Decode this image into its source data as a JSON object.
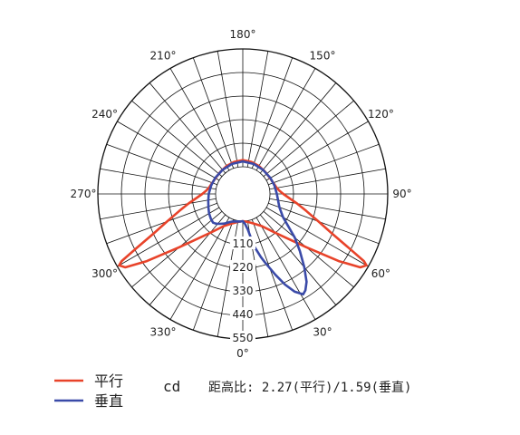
{
  "chart_data": {
    "type": "polar",
    "angle_labels": [
      {
        "deg": 0,
        "text": "0°"
      },
      {
        "deg": 30,
        "text": "30°"
      },
      {
        "deg": 60,
        "text": "60°"
      },
      {
        "deg": 90,
        "text": "90°"
      },
      {
        "deg": 120,
        "text": "120°"
      },
      {
        "deg": 150,
        "text": "150°"
      },
      {
        "deg": 180,
        "text": "180°"
      },
      {
        "deg": 210,
        "text": "210°"
      },
      {
        "deg": 240,
        "text": "240°"
      },
      {
        "deg": 270,
        "text": "270°"
      },
      {
        "deg": 300,
        "text": "300°"
      },
      {
        "deg": 330,
        "text": "330°"
      }
    ],
    "radial_ticks": [
      "110",
      "220",
      "330",
      "440",
      "550"
    ],
    "radial_max": 550,
    "radial_step": 110,
    "angular_grid_step": 10,
    "series": [
      {
        "name": "平行",
        "color": "#e8432a",
        "points": [
          [
            0,
            0
          ],
          [
            10,
            6
          ],
          [
            20,
            20
          ],
          [
            30,
            45
          ],
          [
            40,
            110
          ],
          [
            50,
            260
          ],
          [
            55,
            420
          ],
          [
            58,
            520
          ],
          [
            60,
            540
          ],
          [
            61,
            520
          ],
          [
            63,
            430
          ],
          [
            66,
            330
          ],
          [
            70,
            250
          ],
          [
            75,
            180
          ],
          [
            80,
            130
          ],
          [
            85,
            90
          ],
          [
            90,
            62
          ],
          [
            95,
            45
          ],
          [
            100,
            34
          ],
          [
            110,
            25
          ],
          [
            120,
            20
          ],
          [
            135,
            20
          ],
          [
            150,
            24
          ],
          [
            165,
            28
          ],
          [
            180,
            31
          ],
          [
            195,
            28
          ],
          [
            210,
            24
          ],
          [
            225,
            20
          ],
          [
            240,
            20
          ],
          [
            250,
            25
          ],
          [
            260,
            34
          ],
          [
            265,
            45
          ],
          [
            270,
            62
          ],
          [
            275,
            90
          ],
          [
            280,
            130
          ],
          [
            285,
            180
          ],
          [
            290,
            250
          ],
          [
            294,
            330
          ],
          [
            297,
            430
          ],
          [
            299,
            520
          ],
          [
            300,
            540
          ],
          [
            302,
            520
          ],
          [
            305,
            420
          ],
          [
            310,
            260
          ],
          [
            320,
            110
          ],
          [
            330,
            45
          ],
          [
            340,
            20
          ],
          [
            350,
            6
          ],
          [
            360,
            0
          ]
        ]
      },
      {
        "name": "垂直",
        "color": "#3a4aa8",
        "points": [
          [
            0,
            0
          ],
          [
            4,
            12
          ],
          [
            8,
            40
          ],
          [
            12,
            120
          ],
          [
            16,
            180
          ],
          [
            18,
            210
          ],
          [
            22,
            280
          ],
          [
            25,
            340
          ],
          [
            28,
            390
          ],
          [
            31,
            420
          ],
          [
            33,
            410
          ],
          [
            36,
            380
          ],
          [
            40,
            320
          ],
          [
            45,
            250
          ],
          [
            50,
            190
          ],
          [
            55,
            130
          ],
          [
            60,
            90
          ],
          [
            70,
            55
          ],
          [
            80,
            40
          ],
          [
            90,
            32
          ],
          [
            105,
            26
          ],
          [
            120,
            22
          ],
          [
            140,
            20
          ],
          [
            160,
            22
          ],
          [
            180,
            25
          ],
          [
            200,
            22
          ],
          [
            220,
            20
          ],
          [
            240,
            22
          ],
          [
            255,
            26
          ],
          [
            270,
            32
          ],
          [
            282,
            38
          ],
          [
            292,
            46
          ],
          [
            300,
            55
          ],
          [
            308,
            62
          ],
          [
            314,
            66
          ],
          [
            318,
            60
          ],
          [
            322,
            50
          ],
          [
            328,
            36
          ],
          [
            334,
            20
          ],
          [
            340,
            10
          ],
          [
            348,
            4
          ],
          [
            356,
            2
          ],
          [
            360,
            0
          ]
        ]
      }
    ]
  },
  "legend": {
    "items": [
      {
        "label": "平行",
        "color": "#e8432a"
      },
      {
        "label": "垂直",
        "color": "#3a4aa8"
      }
    ]
  },
  "unit": "cd",
  "ratio_text": "距高比: 2.27(平行)/1.59(垂直)"
}
